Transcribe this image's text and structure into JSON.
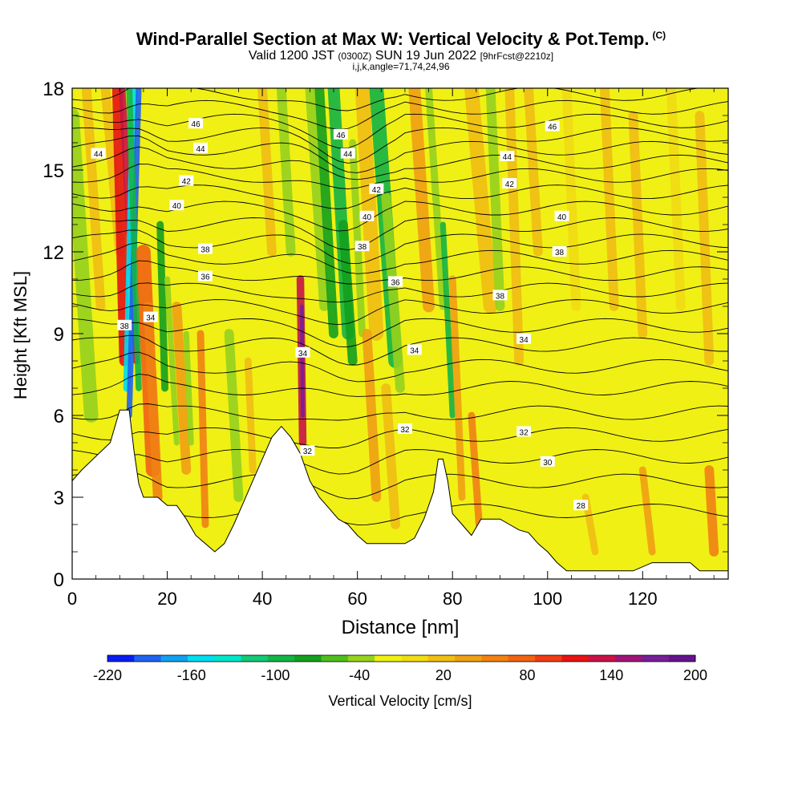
{
  "title": {
    "main": "Wind-Parallel Section at Max W: Vertical Velocity & Pot.Temp.",
    "copyright_mark": "(C)",
    "valid_prefix": "Valid 1200 JST",
    "valid_utc": "(0300Z)",
    "valid_date": "SUN 19 Jun 2022",
    "forecast": "[9hrFcst@2210z]",
    "indices": "i,j,k,angle=71,74,24,96"
  },
  "chart_data": {
    "type": "heatmap",
    "xlabel": "Distance [nm]",
    "ylabel": "Height [Kft MSL]",
    "xlim": [
      0,
      138
    ],
    "ylim": [
      0,
      18
    ],
    "x_ticks": [
      0,
      20,
      40,
      60,
      80,
      100,
      120
    ],
    "y_ticks": [
      0,
      3,
      6,
      9,
      12,
      15,
      18
    ],
    "colorbar": {
      "label": "Vertical Velocity [cm/s]",
      "range": [
        -220,
        200
      ],
      "tick_labels": [
        -220,
        -160,
        -100,
        -40,
        20,
        80,
        140,
        200
      ],
      "colors": [
        "#0a1ef0",
        "#1e64f0",
        "#14a0f0",
        "#00dcf0",
        "#00e6c8",
        "#14c878",
        "#14b446",
        "#14a01e",
        "#50be1e",
        "#96d21e",
        "#f0f014",
        "#f0dc14",
        "#f0be14",
        "#f0a014",
        "#f08214",
        "#f06414",
        "#f03c14",
        "#e61414",
        "#c81446",
        "#a01478",
        "#781e96",
        "#64148c"
      ]
    },
    "contour_labels": [
      {
        "text": "44",
        "x": 5.5,
        "y": 15.6
      },
      {
        "text": "46",
        "x": 26,
        "y": 16.7
      },
      {
        "text": "44",
        "x": 27,
        "y": 15.8
      },
      {
        "text": "42",
        "x": 24,
        "y": 14.6
      },
      {
        "text": "40",
        "x": 22,
        "y": 13.7
      },
      {
        "text": "38",
        "x": 28,
        "y": 12.1
      },
      {
        "text": "36",
        "x": 28,
        "y": 11.1
      },
      {
        "text": "38",
        "x": 11,
        "y": 9.3
      },
      {
        "text": "34",
        "x": 16.5,
        "y": 9.6
      },
      {
        "text": "46",
        "x": 56.5,
        "y": 16.3
      },
      {
        "text": "44",
        "x": 58,
        "y": 15.6
      },
      {
        "text": "42",
        "x": 64,
        "y": 14.3
      },
      {
        "text": "40",
        "x": 62,
        "y": 13.3
      },
      {
        "text": "38",
        "x": 61,
        "y": 12.2
      },
      {
        "text": "36",
        "x": 68,
        "y": 10.9
      },
      {
        "text": "34",
        "x": 48.5,
        "y": 8.3
      },
      {
        "text": "34",
        "x": 72,
        "y": 8.4
      },
      {
        "text": "32",
        "x": 49.5,
        "y": 4.7
      },
      {
        "text": "32",
        "x": 70,
        "y": 5.5
      },
      {
        "text": "46",
        "x": 101,
        "y": 16.6
      },
      {
        "text": "44",
        "x": 91.5,
        "y": 15.5
      },
      {
        "text": "42",
        "x": 92,
        "y": 14.5
      },
      {
        "text": "40",
        "x": 103,
        "y": 13.3
      },
      {
        "text": "38",
        "x": 102.5,
        "y": 12.0
      },
      {
        "text": "38",
        "x": 90,
        "y": 10.4
      },
      {
        "text": "34",
        "x": 95,
        "y": 8.8
      },
      {
        "text": "32",
        "x": 95,
        "y": 5.4
      },
      {
        "text": "30",
        "x": 100,
        "y": 4.3
      },
      {
        "text": "28",
        "x": 107,
        "y": 2.7
      }
    ],
    "isentrope_heights": [
      2.5,
      3.6,
      4.5,
      5.3,
      6.1,
      7.0,
      7.8,
      8.6,
      9.3,
      10.0,
      10.6,
      11.2,
      11.8,
      12.4,
      13.0,
      13.6,
      14.2,
      14.8,
      15.3,
      15.8,
      16.3,
      16.8,
      17.3,
      17.8
    ],
    "terrain": [
      [
        0,
        3.6
      ],
      [
        2,
        4.0
      ],
      [
        5,
        4.5
      ],
      [
        8,
        5.0
      ],
      [
        10,
        6.2
      ],
      [
        12,
        6.2
      ],
      [
        13,
        4.7
      ],
      [
        14,
        3.5
      ],
      [
        15,
        3.0
      ],
      [
        18,
        3.0
      ],
      [
        20,
        2.7
      ],
      [
        22,
        2.7
      ],
      [
        24,
        2.2
      ],
      [
        26,
        1.6
      ],
      [
        28,
        1.3
      ],
      [
        30,
        1.0
      ],
      [
        32,
        1.3
      ],
      [
        34,
        2.0
      ],
      [
        36,
        2.8
      ],
      [
        38,
        3.6
      ],
      [
        40,
        4.4
      ],
      [
        42,
        5.2
      ],
      [
        44,
        5.6
      ],
      [
        46,
        5.2
      ],
      [
        48,
        4.6
      ],
      [
        50,
        3.6
      ],
      [
        52,
        3.0
      ],
      [
        54,
        2.6
      ],
      [
        56,
        2.2
      ],
      [
        58,
        2.0
      ],
      [
        60,
        1.6
      ],
      [
        62,
        1.3
      ],
      [
        64,
        1.3
      ],
      [
        66,
        1.3
      ],
      [
        68,
        1.3
      ],
      [
        70,
        1.3
      ],
      [
        72,
        1.5
      ],
      [
        74,
        2.2
      ],
      [
        76,
        3.2
      ],
      [
        77,
        4.4
      ],
      [
        78,
        4.4
      ],
      [
        79,
        3.6
      ],
      [
        80,
        2.4
      ],
      [
        82,
        2.0
      ],
      [
        84,
        1.6
      ],
      [
        86,
        2.2
      ],
      [
        88,
        2.2
      ],
      [
        90,
        2.2
      ],
      [
        92,
        2.0
      ],
      [
        94,
        1.8
      ],
      [
        96,
        1.7
      ],
      [
        98,
        1.3
      ],
      [
        100,
        1.0
      ],
      [
        102,
        0.6
      ],
      [
        104,
        0.3
      ],
      [
        108,
        0.3
      ],
      [
        114,
        0.3
      ],
      [
        118,
        0.3
      ],
      [
        122,
        0.6
      ],
      [
        126,
        0.6
      ],
      [
        130,
        0.6
      ],
      [
        132,
        0.3
      ],
      [
        138,
        0.3
      ]
    ]
  }
}
